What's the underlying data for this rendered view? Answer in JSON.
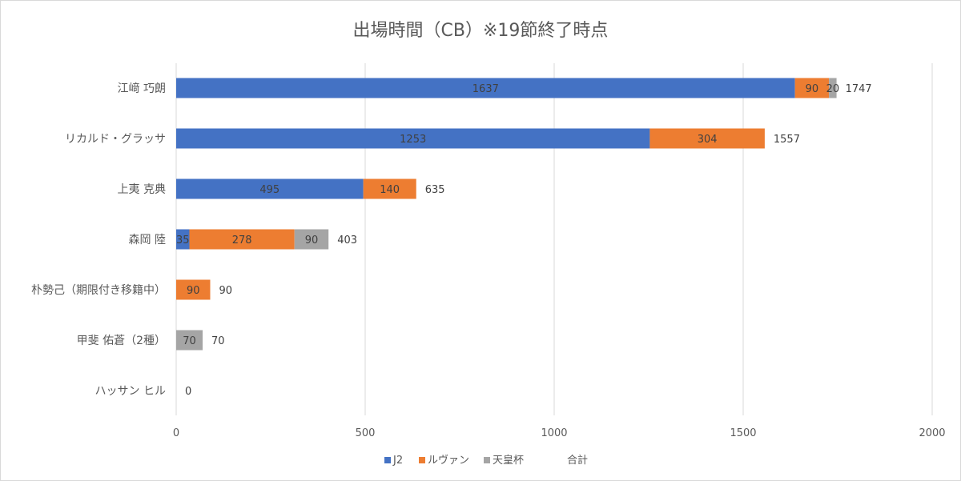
{
  "chart_data": {
    "type": "bar",
    "orientation": "horizontal",
    "stacked": true,
    "title": "出場時間（CB）※19節終了時点",
    "categories": [
      "江﨑 巧朗",
      "リカルド・グラッサ",
      "上夷 克典",
      "森岡 陸",
      "朴勢己（期限付き移籍中）",
      "甲斐 佑蒼（2種）",
      "ハッサン ヒル"
    ],
    "series": [
      {
        "name": "J2",
        "color": "#4472c4",
        "values": [
          1637,
          1253,
          495,
          35,
          0,
          0,
          0
        ]
      },
      {
        "name": "ルヴァン",
        "color": "#ed7d31",
        "values": [
          90,
          304,
          140,
          278,
          90,
          0,
          0
        ]
      },
      {
        "name": "天皇杯",
        "color": "#a5a5a5",
        "values": [
          20,
          0,
          0,
          90,
          0,
          70,
          0
        ]
      }
    ],
    "totals": {
      "name": "合計",
      "values": [
        1747,
        1557,
        635,
        403,
        90,
        70,
        0
      ]
    },
    "xlim": [
      0,
      2000
    ],
    "xticks": [
      0,
      500,
      1000,
      1500,
      2000
    ],
    "grid": true,
    "legend_position": "bottom"
  }
}
